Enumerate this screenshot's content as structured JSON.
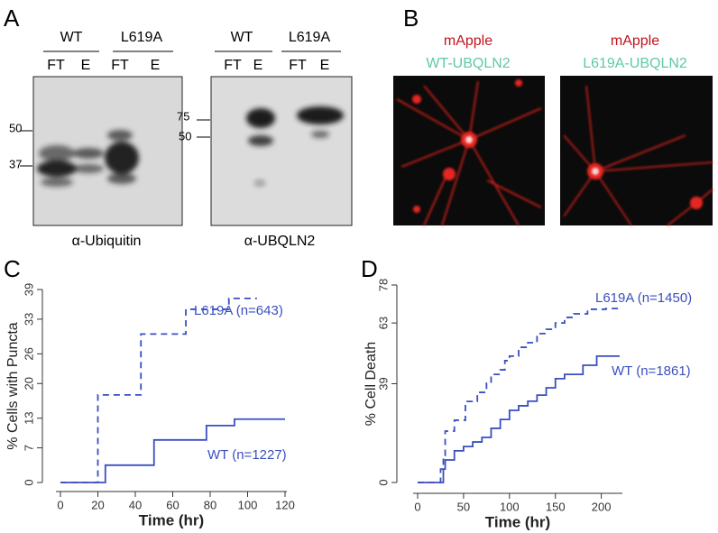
{
  "panels": {
    "A": {
      "label": "A",
      "blot1": {
        "groups": [
          "WT",
          "L619A"
        ],
        "lanes": [
          "FT",
          "E",
          "FT",
          "E"
        ],
        "markers": [
          "50",
          "37"
        ],
        "antibody": "α-Ubiquitin"
      },
      "blot2": {
        "groups": [
          "WT",
          "L619A"
        ],
        "lanes": [
          "FT",
          "E",
          "FT",
          "E"
        ],
        "markers": [
          "75",
          "50"
        ],
        "antibody": "α-UBQLN2"
      }
    },
    "B": {
      "label": "B",
      "images": [
        {
          "stain": "mApple",
          "construct": "WT-UBQLN2"
        },
        {
          "stain": "mApple",
          "construct": "L619A-UBQLN2"
        }
      ]
    },
    "C": {
      "label": "C"
    },
    "D": {
      "label": "D"
    }
  },
  "chart_data": [
    {
      "type": "line",
      "step": true,
      "xlabel": "Time (hr)",
      "ylabel": "% Cells with Puncta",
      "xlim": [
        0,
        120
      ],
      "xticks": [
        0,
        20,
        40,
        60,
        80,
        100,
        120
      ],
      "ylim": [
        0,
        39
      ],
      "yticks": [
        0,
        7,
        13,
        20,
        26,
        33,
        39
      ],
      "series": [
        {
          "name": "L619A (n=643)",
          "color": "#3a4fc0",
          "style": "dashed",
          "x": [
            0,
            20,
            43,
            67,
            90,
            105
          ],
          "values": [
            0,
            17.7,
            30,
            35,
            37.2,
            37.2
          ]
        },
        {
          "name": "WT (n=1227)",
          "color": "#3a4fc0",
          "style": "solid",
          "x": [
            0,
            24,
            50,
            78,
            93,
            120
          ],
          "values": [
            0,
            3.5,
            8.6,
            11.5,
            12.8,
            12.8
          ]
        }
      ]
    },
    {
      "type": "line",
      "step": true,
      "xlabel": "Time (hr)",
      "ylabel": "% Cell Death",
      "xlim": [
        0,
        220
      ],
      "xticks": [
        0,
        50,
        100,
        150,
        200
      ],
      "ylim": [
        0,
        78
      ],
      "yticks": [
        0,
        39,
        63,
        78
      ],
      "series": [
        {
          "name": "L619A (n=1450)",
          "color": "#3a4fc0",
          "style": "dashed",
          "x": [
            0,
            22,
            25,
            28,
            30,
            40,
            52,
            65,
            75,
            80,
            90,
            95,
            100,
            110,
            120,
            130,
            140,
            150,
            160,
            170,
            185,
            205,
            220
          ],
          "values": [
            0,
            0,
            5.3,
            10.7,
            20.3,
            24.6,
            32,
            35.6,
            39.2,
            42.7,
            44.5,
            48.1,
            49.9,
            53.4,
            55.2,
            58.8,
            60.5,
            63,
            65.2,
            66.6,
            68.4,
            68.7,
            68.7
          ]
        },
        {
          "name": "WT (n=1861)",
          "color": "#3a4fc0",
          "style": "solid",
          "x": [
            0,
            25,
            28,
            30,
            40,
            50,
            60,
            70,
            80,
            90,
            100,
            110,
            120,
            130,
            140,
            150,
            160,
            180,
            195,
            220
          ],
          "values": [
            0,
            0,
            5.3,
            8.9,
            12.5,
            14.2,
            16,
            17.8,
            21.4,
            24.9,
            28.5,
            30.3,
            32.1,
            34.5,
            37.4,
            41,
            42.7,
            46.3,
            49.9,
            49.9
          ]
        }
      ]
    }
  ]
}
